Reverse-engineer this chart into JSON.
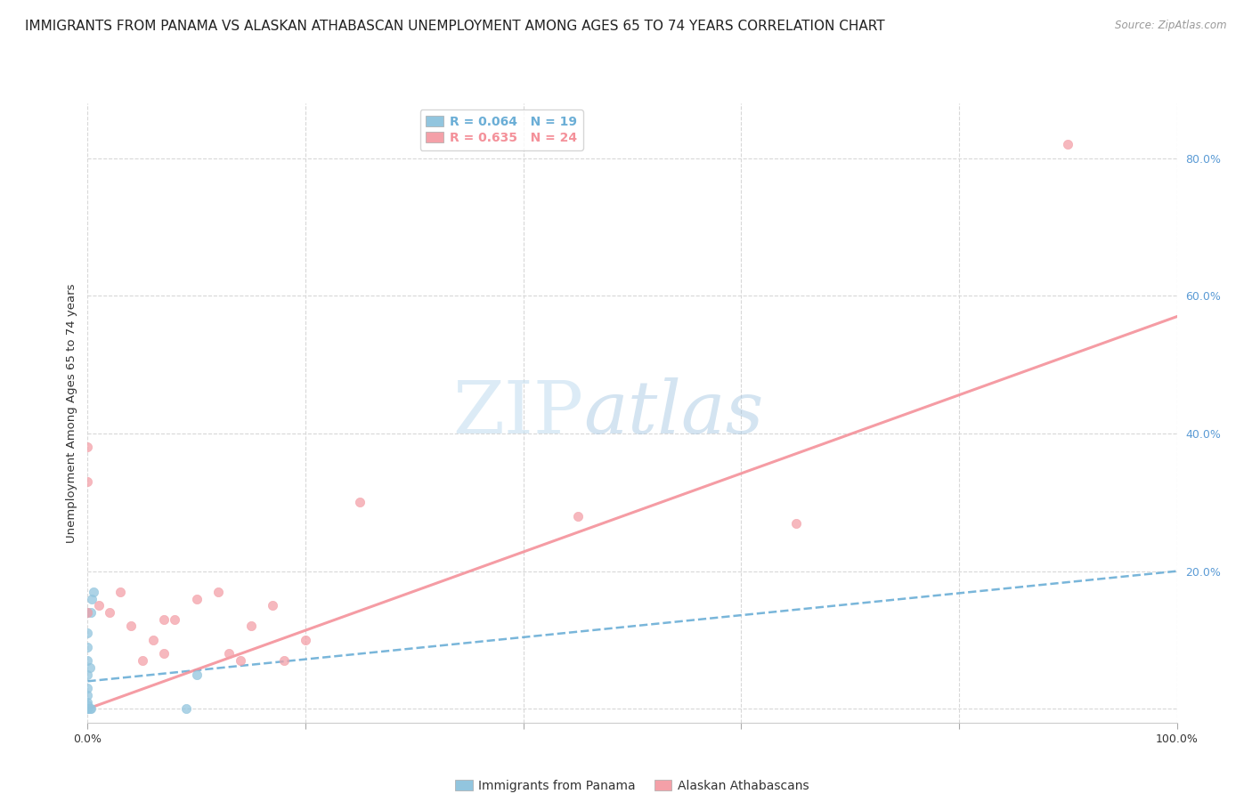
{
  "title": "IMMIGRANTS FROM PANAMA VS ALASKAN ATHABASCAN UNEMPLOYMENT AMONG AGES 65 TO 74 YEARS CORRELATION CHART",
  "source": "Source: ZipAtlas.com",
  "ylabel": "Unemployment Among Ages 65 to 74 years",
  "xlim": [
    0.0,
    1.0
  ],
  "ylim": [
    -0.02,
    0.88
  ],
  "xtick_pos": [
    0.0,
    0.2,
    0.4,
    0.6,
    0.8,
    1.0
  ],
  "xticklabels": [
    "0.0%",
    "",
    "",
    "",
    "",
    "100.0%"
  ],
  "ytick_pos": [
    0.0,
    0.2,
    0.4,
    0.6,
    0.8
  ],
  "ytick_labels": [
    "",
    "20.0%",
    "40.0%",
    "60.0%",
    "80.0%"
  ],
  "watermark_zip": "ZIP",
  "watermark_atlas": "atlas",
  "legend_panama_label": "R = 0.064   N = 19",
  "legend_athabascan_label": "R = 0.635   N = 24",
  "legend_bottom_panama": "Immigrants from Panama",
  "legend_bottom_athabascan": "Alaskan Athabascans",
  "panama_color": "#92c5de",
  "athabascan_color": "#f4a0a8",
  "panama_trend_color": "#6baed6",
  "athabascan_trend_color": "#f4919a",
  "tick_color": "#5b9bd5",
  "panama_scatter_x": [
    0.0,
    0.0,
    0.0,
    0.0,
    0.0,
    0.0,
    0.0,
    0.0,
    0.0,
    0.0,
    0.0,
    0.002,
    0.002,
    0.003,
    0.003,
    0.004,
    0.005,
    0.09,
    0.1
  ],
  "panama_scatter_y": [
    0.0,
    0.0,
    0.005,
    0.01,
    0.02,
    0.03,
    0.05,
    0.07,
    0.09,
    0.11,
    0.14,
    0.0,
    0.06,
    0.0,
    0.14,
    0.16,
    0.17,
    0.0,
    0.05
  ],
  "athabascan_scatter_x": [
    0.0,
    0.0,
    0.0,
    0.01,
    0.02,
    0.03,
    0.04,
    0.05,
    0.06,
    0.07,
    0.07,
    0.08,
    0.1,
    0.12,
    0.13,
    0.14,
    0.15,
    0.17,
    0.18,
    0.2,
    0.25,
    0.45,
    0.65,
    0.9
  ],
  "athabascan_scatter_y": [
    0.38,
    0.33,
    0.14,
    0.15,
    0.14,
    0.17,
    0.12,
    0.07,
    0.1,
    0.08,
    0.13,
    0.13,
    0.16,
    0.17,
    0.08,
    0.07,
    0.12,
    0.15,
    0.07,
    0.1,
    0.3,
    0.28,
    0.27,
    0.82
  ],
  "panama_trend_x": [
    0.0,
    1.0
  ],
  "panama_trend_y": [
    0.04,
    0.2
  ],
  "athabascan_trend_x": [
    0.0,
    1.0
  ],
  "athabascan_trend_y": [
    0.0,
    0.57
  ],
  "background_color": "#ffffff",
  "grid_color": "#d8d8d8",
  "title_fontsize": 11,
  "axis_label_fontsize": 9.5,
  "tick_fontsize": 9,
  "legend_fontsize": 10
}
